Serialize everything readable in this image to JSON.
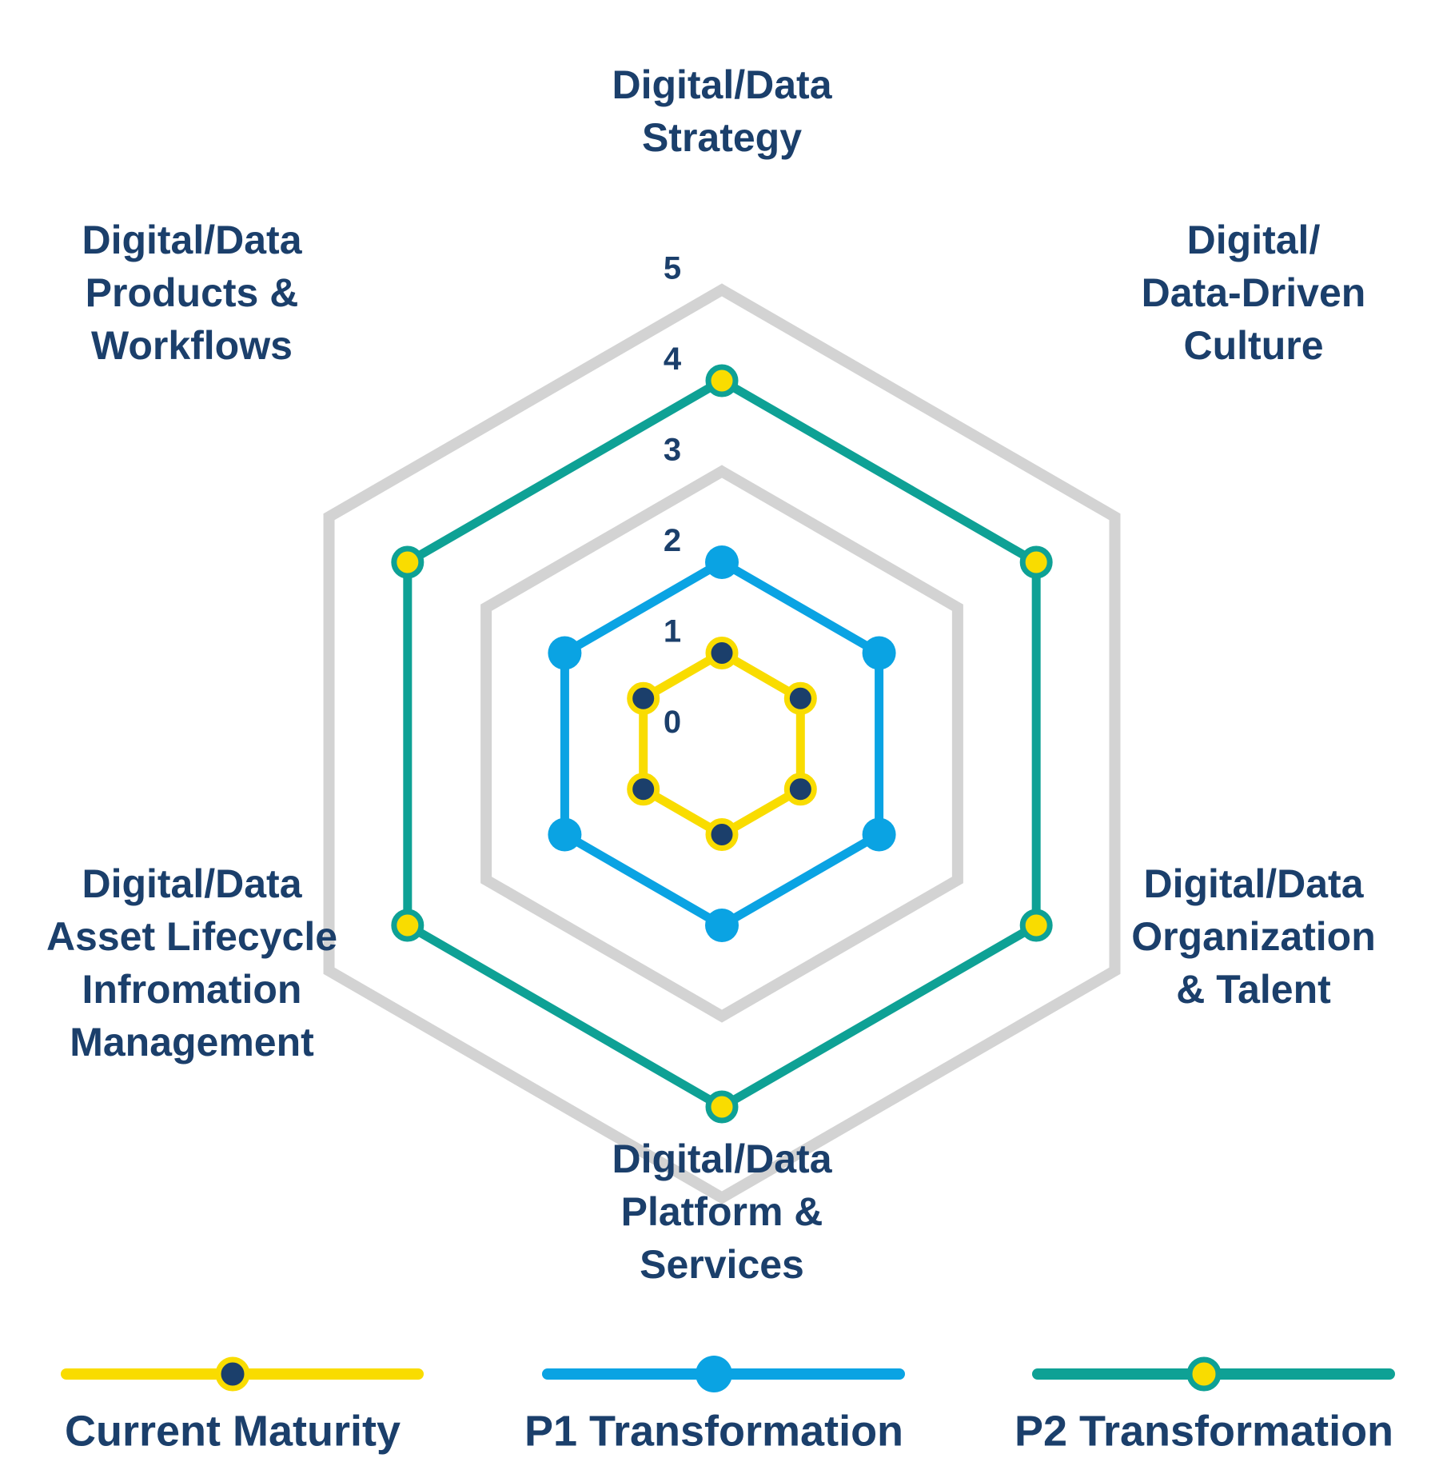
{
  "chart_data": {
    "type": "radar",
    "axes": [
      [
        "Digital/Data",
        "Strategy"
      ],
      [
        "Digital/",
        "Data-Driven",
        "Culture"
      ],
      [
        "Digital/Data",
        "Organization",
        "& Talent"
      ],
      [
        "Digital/Data",
        "Platform &",
        "Services"
      ],
      [
        "Digital/Data",
        "Asset Lifecycle",
        "Infromation",
        "Management"
      ],
      [
        "Digital/Data",
        "Products &",
        "Workflows"
      ]
    ],
    "ticks": [
      "0",
      "1",
      "2",
      "3",
      "4",
      "5"
    ],
    "rlim": [
      0,
      5
    ],
    "grid_rings": [
      3,
      5
    ],
    "series": [
      {
        "name": "Current Maturity",
        "values": [
          1,
          1,
          1,
          1,
          1,
          1
        ],
        "line_color": "#f9dc00",
        "marker": "ring",
        "marker_fill": "#1b3f6b",
        "marker_stroke": "#f9dc00"
      },
      {
        "name": "P1 Transformation",
        "values": [
          2,
          2,
          2,
          2,
          2,
          2
        ],
        "line_color": "#0aa3e3",
        "marker": "dot",
        "marker_fill": "#0aa3e3",
        "marker_stroke": "#0aa3e3"
      },
      {
        "name": "P2 Transformation",
        "values": [
          4,
          4,
          4,
          4,
          4,
          4
        ],
        "line_color": "#0ea195",
        "marker": "ring",
        "marker_fill": "#f9dc00",
        "marker_stroke": "#0ea195"
      }
    ],
    "legend_position": "bottom"
  },
  "colors": {
    "text": "#1b3f6b",
    "grid": "#d3d3d3"
  }
}
